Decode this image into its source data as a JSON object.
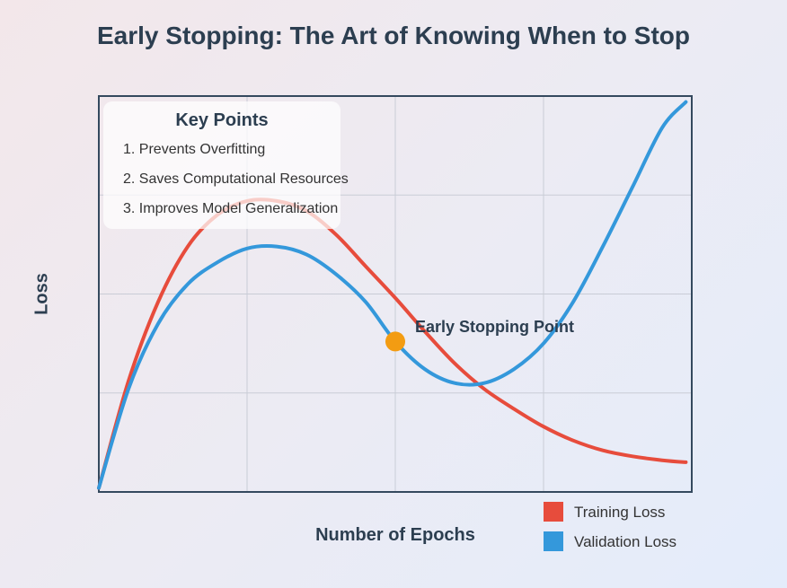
{
  "chart_data": {
    "type": "line",
    "title": "Early Stopping: The Art of Knowing When to Stop",
    "xlabel": "Number of Epochs",
    "ylabel": "Loss",
    "xlim": [
      0,
      100
    ],
    "ylim": [
      0,
      100
    ],
    "grid": true,
    "legend_position": "bottom-right",
    "series": [
      {
        "name": "Training Loss",
        "color": "#e74c3c",
        "x": [
          0,
          5,
          10,
          15,
          20,
          25,
          30,
          35,
          40,
          45,
          50,
          55,
          60,
          65,
          70,
          75,
          80,
          85,
          90,
          95,
          99
        ],
        "y": [
          1,
          28,
          48,
          62,
          70,
          73.5,
          73.5,
          71,
          65,
          57,
          49,
          40.5,
          32.5,
          26,
          21,
          16.5,
          13,
          10.5,
          9,
          8,
          7.5
        ]
      },
      {
        "name": "Validation Loss",
        "color": "#3498db",
        "x": [
          0,
          5,
          10,
          15,
          20,
          25,
          30,
          35,
          40,
          45,
          50,
          55,
          60,
          65,
          70,
          75,
          80,
          85,
          90,
          95,
          99
        ],
        "y": [
          1,
          26,
          42.5,
          52.5,
          58,
          61.5,
          62,
          60,
          55,
          48,
          38,
          31,
          27.5,
          27.5,
          31,
          37.5,
          48,
          62,
          77,
          92,
          98.5
        ]
      }
    ],
    "annotation": {
      "label": "Early Stopping Point",
      "x": 50,
      "y": 38,
      "color": "#f39c12"
    }
  },
  "key_points": {
    "title": "Key Points",
    "items": [
      "1. Prevents Overfitting",
      "2. Saves Computational Resources",
      "3. Improves Model Generalization"
    ]
  }
}
